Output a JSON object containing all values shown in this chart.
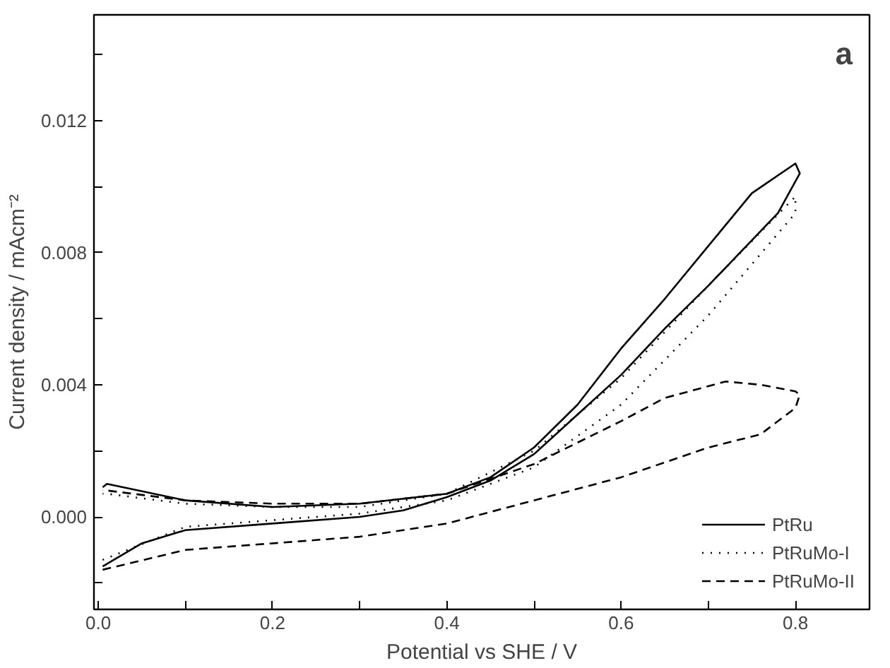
{
  "chart_data": {
    "type": "line",
    "xlabel": "Potential vs SHE / V",
    "ylabel": "Current density / mAcm⁻²",
    "annotations": [
      "a"
    ],
    "xlim": [
      -0.005,
      0.885
    ],
    "ylim": [
      -0.0028,
      0.0152
    ],
    "xticks": [
      {
        "value": 0,
        "label": "0.0"
      },
      {
        "value": 0.1,
        "label": null
      },
      {
        "value": 0.2,
        "label": "0.2"
      },
      {
        "value": 0.3,
        "label": null
      },
      {
        "value": 0.4,
        "label": "0.4"
      },
      {
        "value": 0.5,
        "label": null
      },
      {
        "value": 0.6,
        "label": "0.6"
      },
      {
        "value": 0.7,
        "label": null
      },
      {
        "value": 0.8,
        "label": "0.8"
      }
    ],
    "yticks": [
      {
        "value": -0.002,
        "label": null
      },
      {
        "value": 0,
        "label": "0.000"
      },
      {
        "value": 0.002,
        "label": null
      },
      {
        "value": 0.004,
        "label": "0.004"
      },
      {
        "value": 0.006,
        "label": null
      },
      {
        "value": 0.008,
        "label": "0.008"
      },
      {
        "value": 0.01,
        "label": null
      },
      {
        "value": 0.012,
        "label": "0.012"
      },
      {
        "value": 0.014,
        "label": null
      }
    ],
    "grid": false,
    "legend": "bottom right",
    "marker": "none",
    "series": [
      {
        "name": "PtRu",
        "color": "#000000",
        "line_style": "solid",
        "x": [
          0.005,
          0.05,
          0.1,
          0.2,
          0.3,
          0.35,
          0.4,
          0.45,
          0.5,
          0.55,
          0.6,
          0.65,
          0.7,
          0.78,
          0.805,
          0.8,
          0.75,
          0.7,
          0.65,
          0.6,
          0.55,
          0.5,
          0.45,
          0.4,
          0.3,
          0.2,
          0.1,
          0.01,
          0.005
        ],
        "values": [
          -0.0015,
          -0.0008,
          -0.0004,
          -0.0002,
          0.0,
          0.0002,
          0.0006,
          0.0011,
          0.0019,
          0.0031,
          0.0043,
          0.0057,
          0.007,
          0.0092,
          0.0104,
          0.0107,
          0.0098,
          0.0082,
          0.0066,
          0.0051,
          0.0034,
          0.0021,
          0.0012,
          0.0007,
          0.0004,
          0.0003,
          0.0005,
          0.001,
          0.0009
        ]
      },
      {
        "name": "PtRuMo-I",
        "color": "#000000",
        "line_style": "dotted",
        "x": [
          0.005,
          0.1,
          0.2,
          0.3,
          0.4,
          0.5,
          0.6,
          0.7,
          0.8,
          0.8,
          0.7,
          0.6,
          0.5,
          0.4,
          0.3,
          0.2,
          0.1,
          0.01,
          0.005
        ],
        "values": [
          -0.0013,
          -0.0003,
          -0.0001,
          0.0001,
          0.0005,
          0.0015,
          0.0034,
          0.0061,
          0.0092,
          0.0097,
          0.007,
          0.0042,
          0.002,
          0.0007,
          0.0003,
          0.0003,
          0.0004,
          0.0007,
          0.0007
        ]
      },
      {
        "name": "PtRuMo-II",
        "color": "#000000",
        "line_style": "dashed",
        "x": [
          0.005,
          0.1,
          0.2,
          0.3,
          0.4,
          0.5,
          0.6,
          0.7,
          0.76,
          0.8,
          0.805,
          0.8,
          0.76,
          0.72,
          0.65,
          0.6,
          0.5,
          0.4,
          0.3,
          0.2,
          0.1,
          0.01,
          0.005
        ],
        "values": [
          -0.0016,
          -0.001,
          -0.0008,
          -0.0006,
          -0.0002,
          0.0005,
          0.0012,
          0.0021,
          0.0025,
          0.0033,
          0.0037,
          0.0038,
          0.004,
          0.0041,
          0.0036,
          0.0029,
          0.0016,
          0.0007,
          0.0004,
          0.0004,
          0.0005,
          0.0008,
          0.0008
        ]
      }
    ]
  }
}
